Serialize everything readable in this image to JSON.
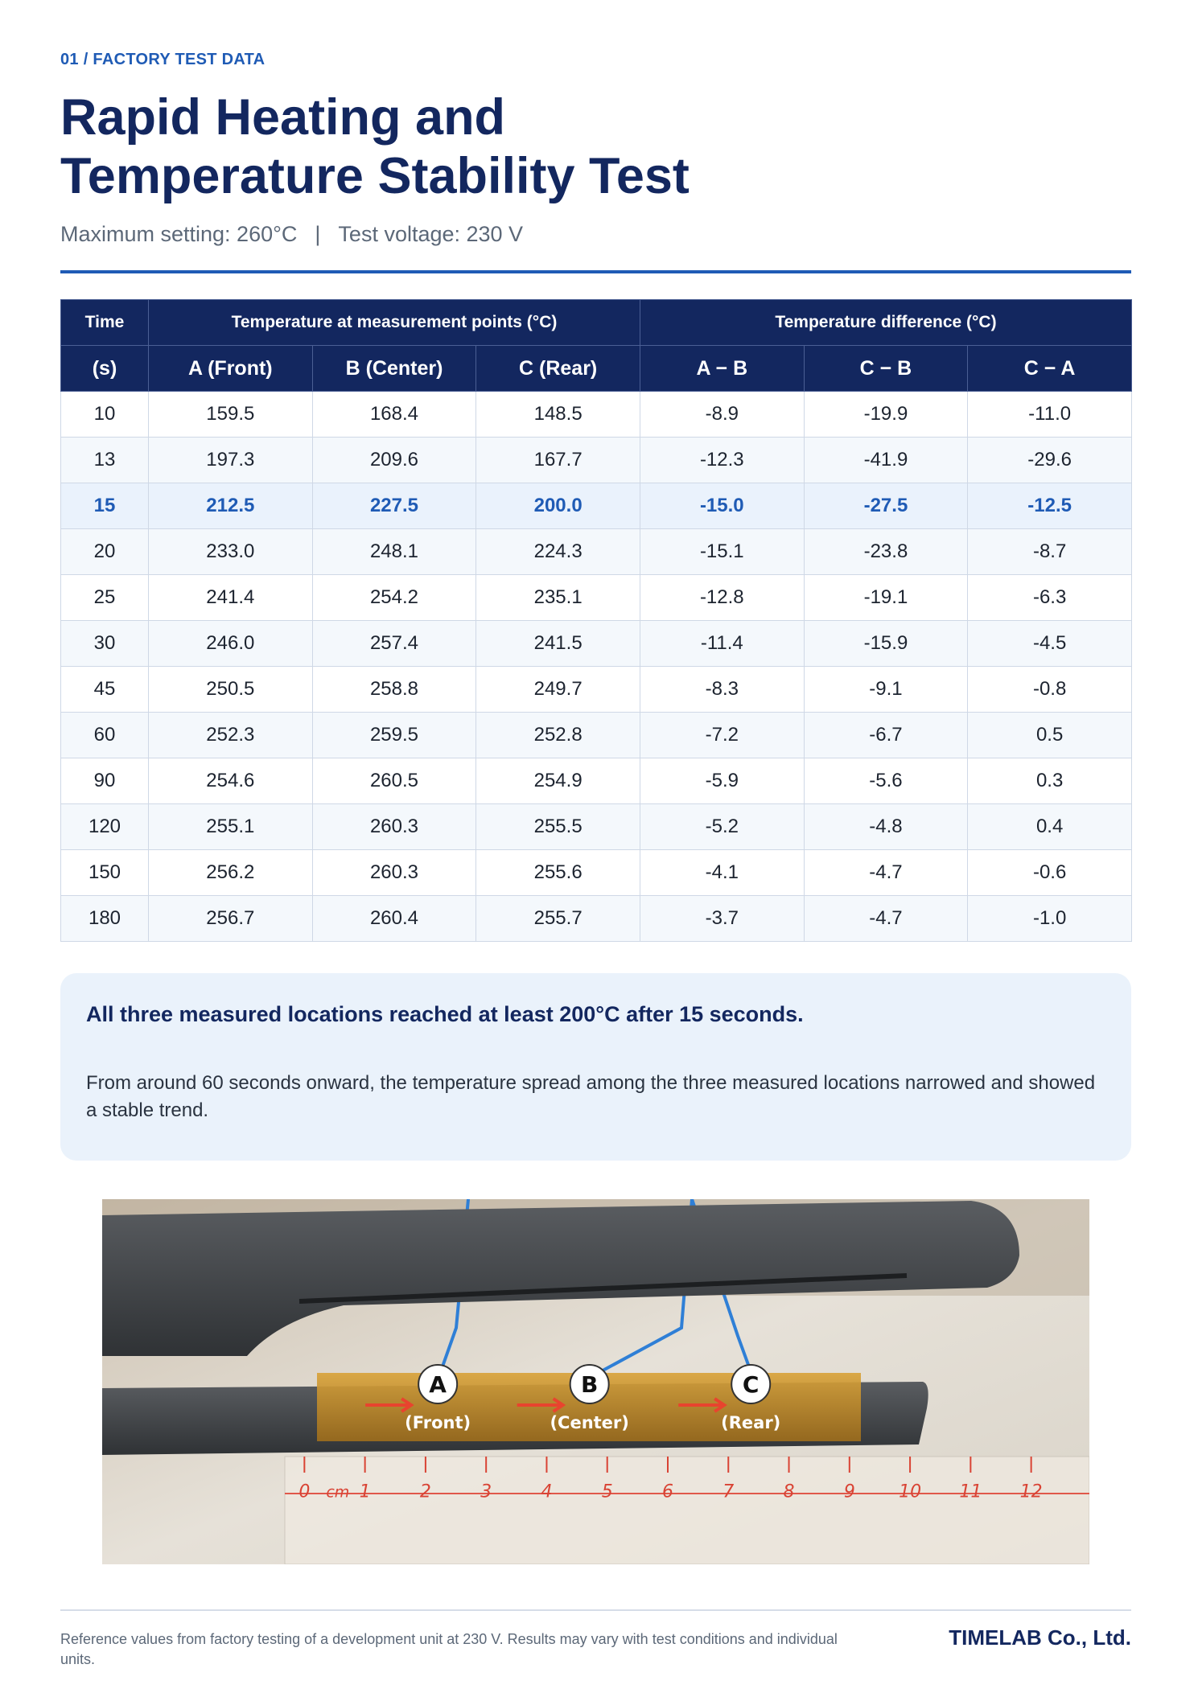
{
  "header": {
    "eyebrow": "01 / FACTORY TEST DATA",
    "title_lines": [
      "Rapid Heating and",
      "Temperature Stability Test"
    ],
    "subtitle_parts": [
      "Maximum setting: 260°C",
      "|",
      "Test voltage: 230 V"
    ]
  },
  "table": {
    "header_row1": [
      "Time",
      "Temperature at measurement points (°C)",
      "Temperature difference (°C)"
    ],
    "header_row2": [
      "(s)",
      "A (Front)",
      "B (Center)",
      "C (Rear)",
      "A − B",
      "C − B",
      "C − A"
    ],
    "rows": [
      [
        "10",
        "159.5",
        "168.4",
        "148.5",
        "-8.9",
        "-19.9",
        "-11.0"
      ],
      [
        "13",
        "197.3",
        "209.6",
        "167.7",
        "-12.3",
        "-41.9",
        "-29.6"
      ],
      [
        "15",
        "212.5",
        "227.5",
        "200.0",
        "-15.0",
        "-27.5",
        "-12.5"
      ],
      [
        "20",
        "233.0",
        "248.1",
        "224.3",
        "-15.1",
        "-23.8",
        "-8.7"
      ],
      [
        "25",
        "241.4",
        "254.2",
        "235.1",
        "-12.8",
        "-19.1",
        "-6.3"
      ],
      [
        "30",
        "246.0",
        "257.4",
        "241.5",
        "-11.4",
        "-15.9",
        "-4.5"
      ],
      [
        "45",
        "250.5",
        "258.8",
        "249.7",
        "-8.3",
        "-9.1",
        "-0.8"
      ],
      [
        "60",
        "252.3",
        "259.5",
        "252.8",
        "-7.2",
        "-6.7",
        "0.5"
      ],
      [
        "90",
        "254.6",
        "260.5",
        "254.9",
        "-5.9",
        "-5.6",
        "0.3"
      ],
      [
        "120",
        "255.1",
        "260.3",
        "255.5",
        "-5.2",
        "-4.8",
        "0.4"
      ],
      [
        "150",
        "256.2",
        "260.3",
        "255.6",
        "-4.1",
        "-4.7",
        "-0.6"
      ],
      [
        "180",
        "256.7",
        "260.4",
        "255.7",
        "-3.7",
        "-4.7",
        "-1.0"
      ]
    ]
  },
  "callout": {
    "headline": "All three measured locations reached at least 200°C after 15 seconds.",
    "body": "From around 60 seconds onward, the temperature spread among the three measured locations narrowed and showed a stable trend."
  },
  "photo": {
    "points": [
      {
        "letter": "A",
        "label": "(Front)"
      },
      {
        "letter": "B",
        "label": "(Center)"
      },
      {
        "letter": "C",
        "label": "(Rear)"
      }
    ],
    "ruler_unit": "cm",
    "ruler_numbers": [
      "0",
      "1",
      "2",
      "3",
      "4",
      "5",
      "6",
      "7",
      "8",
      "9",
      "10",
      "11",
      "12"
    ]
  },
  "footer": {
    "note": "Reference values from factory testing of a development unit at 230 V. Results may vary with test conditions and individual units.",
    "company": "TIMELAB Co., Ltd."
  }
}
